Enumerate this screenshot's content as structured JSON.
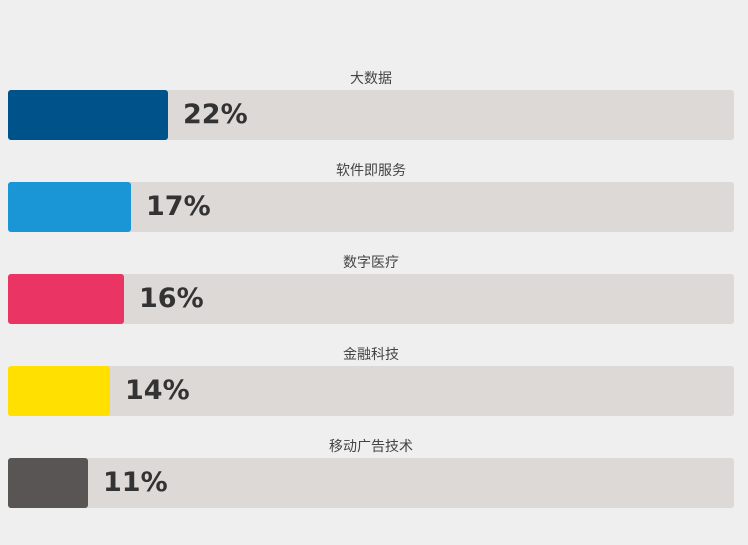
{
  "chart_data": {
    "type": "bar",
    "orientation": "horizontal",
    "categories": [
      "大数据",
      "软件即服务",
      "数字医疗",
      "金融科技",
      "移动广告技术"
    ],
    "values": [
      22,
      17,
      16,
      14,
      11
    ],
    "value_labels": [
      "22%",
      "17%",
      "16%",
      "14%",
      "11%"
    ],
    "unit": "%",
    "colors": [
      "#00538a",
      "#1a96d6",
      "#ea3564",
      "#ffe000",
      "#595555"
    ],
    "track_color": "#ddd9d6",
    "xlim": [
      0,
      100
    ],
    "grid": false,
    "legend": "none",
    "title": "",
    "xlabel": "",
    "ylabel": ""
  }
}
